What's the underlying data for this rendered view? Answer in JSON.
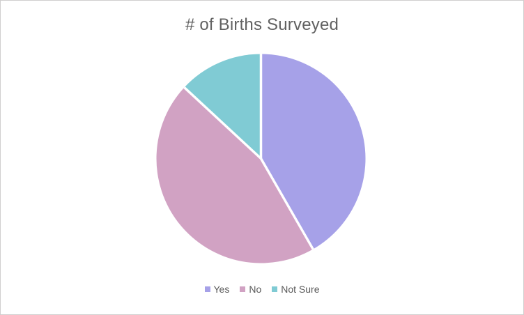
{
  "window": {
    "background_color": "#FFFFFF",
    "border_color": "#D0CECE"
  },
  "chart_data": {
    "type": "pie",
    "title": "# of Births Surveyed",
    "labels": [
      "Yes",
      "No",
      "Not Sure"
    ],
    "values": [
      41.7,
      45.2,
      13.1
    ],
    "values_unit": "percent (estimated from slice angles; no data labels shown)",
    "colors": [
      "#A6A1E8",
      "#D1A2C3",
      "#80CBD4"
    ],
    "start_angle_deg": 0,
    "direction": "clockwise",
    "slice_gap_color": "#FFFFFF",
    "legend_position": "bottom",
    "title_color": "#616161",
    "legend_text_color": "#595959"
  }
}
